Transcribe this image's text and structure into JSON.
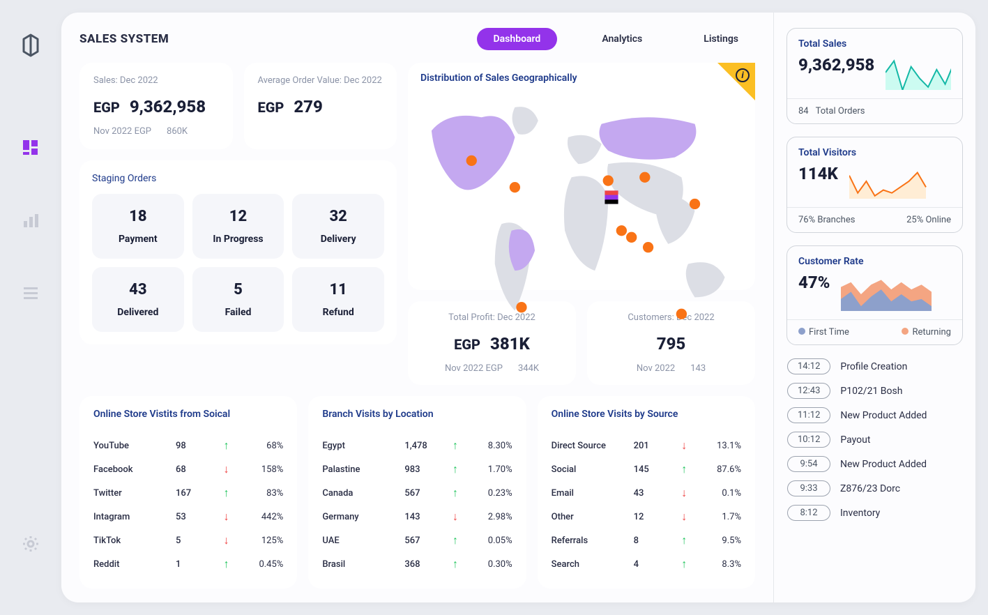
{
  "header": {
    "title": "SALES SYSTEM",
    "tabs": [
      "Dashboard",
      "Analytics",
      "Listings"
    ],
    "active": 0
  },
  "sales": {
    "label": "Sales: Dec 2022",
    "currency": "EGP",
    "value": "9,362,958",
    "sub1": "Nov 2022 EGP",
    "sub2": "860K"
  },
  "aov": {
    "label": "Average Order Value: Dec 2022",
    "currency": "EGP",
    "value": "279"
  },
  "staging": {
    "label": "Staging Orders",
    "items": [
      {
        "n": "18",
        "l": "Payment"
      },
      {
        "n": "12",
        "l": "In Progress"
      },
      {
        "n": "32",
        "l": "Delivery"
      },
      {
        "n": "43",
        "l": "Delivered"
      },
      {
        "n": "5",
        "l": "Failed"
      },
      {
        "n": "11",
        "l": "Refund"
      }
    ]
  },
  "map": {
    "label": "Distribution of Sales Geographically",
    "land": "#DCDEE5",
    "highlight": "#C4A8F0",
    "ocean": "#ffffff",
    "markers": [
      [
        17,
        21
      ],
      [
        30,
        29
      ],
      [
        58,
        27
      ],
      [
        62,
        42
      ],
      [
        65,
        44
      ],
      [
        70,
        47
      ],
      [
        69,
        26
      ],
      [
        84,
        34
      ],
      [
        80,
        67
      ],
      [
        32,
        65
      ]
    ]
  },
  "profit": {
    "label": "Total Profit: Dec 2022",
    "currency": "EGP",
    "value": "381K",
    "sub1": "Nov 2022 EGP",
    "sub2": "344K"
  },
  "cust": {
    "label": "Customers: Dec 2022",
    "value": "795",
    "sub1": "Nov 2022",
    "sub2": "143"
  },
  "social": {
    "label": "Online Store Vistits from Soical",
    "rows": [
      [
        "YouTube",
        "98",
        "up",
        "68%"
      ],
      [
        "Facebook",
        "68",
        "down",
        "158%"
      ],
      [
        "Twitter",
        "167",
        "up",
        "83%"
      ],
      [
        "Intagram",
        "53",
        "down",
        "442%"
      ],
      [
        "TikTok",
        "5",
        "down",
        "125%"
      ],
      [
        "Reddit",
        "1",
        "up",
        "0.45%"
      ]
    ]
  },
  "branch": {
    "label": "Branch Visits by Location",
    "rows": [
      [
        "Egypt",
        "1,478",
        "up",
        "8.30%"
      ],
      [
        "Palastine",
        "983",
        "up",
        "1.70%"
      ],
      [
        "Canada",
        "567",
        "up",
        "0.23%"
      ],
      [
        "Germany",
        "143",
        "down",
        "2.98%"
      ],
      [
        "UAE",
        "567",
        "up",
        "0.05%"
      ],
      [
        "Brasil",
        "368",
        "up",
        "0.30%"
      ]
    ]
  },
  "source": {
    "label": "Online Store Visits by Source",
    "rows": [
      [
        "Direct Source",
        "201",
        "down",
        "13.1%"
      ],
      [
        "Social",
        "145",
        "up",
        "87.6%"
      ],
      [
        "Email",
        "43",
        "down",
        "0.1%"
      ],
      [
        "Other",
        "12",
        "down",
        "1.7%"
      ],
      [
        "Referrals",
        "8",
        "up",
        "9.5%"
      ],
      [
        "Search",
        "4",
        "up",
        "8.3%"
      ]
    ]
  },
  "totalSales": {
    "label": "Total Sales",
    "value": "9,362,958",
    "foot1": "84",
    "foot2": "Total Orders",
    "spark": {
      "color": "#14B8A6",
      "fill": "#CCFBF1",
      "points": [
        30,
        10,
        60,
        20,
        40,
        55,
        25,
        50,
        15,
        45
      ]
    }
  },
  "visitors": {
    "label": "Total Visitors",
    "value": "114K",
    "foot1": "76%  Branches",
    "foot2": "25%  Online",
    "spark": {
      "color": "#F97316",
      "fill": "#FFEDD5",
      "points": [
        20,
        50,
        30,
        55,
        45,
        50,
        40,
        30,
        15,
        40
      ]
    }
  },
  "rate": {
    "label": "Customer Rate",
    "value": "47%",
    "area": {
      "c1": "#F4A582",
      "c2": "#8DA0CB",
      "p1": [
        30,
        20,
        45,
        25,
        15,
        35,
        20,
        35,
        25,
        40
      ],
      "p2": [
        55,
        40,
        70,
        50,
        35,
        60,
        45,
        60,
        55,
        70
      ]
    },
    "legend": [
      {
        "c": "#8DA0CB",
        "t": "First Time"
      },
      {
        "c": "#F4A582",
        "t": "Returning"
      }
    ]
  },
  "activity": [
    [
      "14:12",
      "Profile Creation"
    ],
    [
      "12:43",
      "P102/21 Bosh"
    ],
    [
      "11:12",
      "New Product Added"
    ],
    [
      "10:12",
      "Payout"
    ],
    [
      "9:54",
      "New Product Added"
    ],
    [
      "9:33",
      "Z876/23 Dorc"
    ],
    [
      "8:12",
      "Inventory"
    ]
  ],
  "colors": {
    "purple": "#9333EA",
    "navy": "#1e3a8a",
    "green": "#22C55E",
    "red": "#EF4444",
    "yellow": "#FBBF24"
  }
}
